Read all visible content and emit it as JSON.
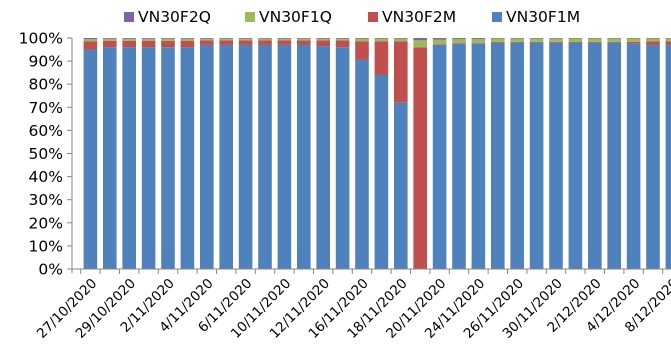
{
  "chart_data": {
    "type": "bar",
    "stacked": true,
    "percent_stacked": true,
    "title": "",
    "xlabel": "",
    "ylabel": "",
    "ylim": [
      0,
      100
    ],
    "yticks": [
      "0%",
      "10%",
      "20%",
      "30%",
      "40%",
      "50%",
      "60%",
      "70%",
      "80%",
      "90%",
      "100%"
    ],
    "legend_position": "top",
    "grid": false,
    "categories": [
      "27/10/2020",
      "28/10/2020",
      "29/10/2020",
      "30/10/2020",
      "2/11/2020",
      "3/11/2020",
      "4/11/2020",
      "5/11/2020",
      "6/11/2020",
      "9/11/2020",
      "10/11/2020",
      "11/11/2020",
      "12/11/2020",
      "13/11/2020",
      "16/11/2020",
      "17/11/2020",
      "18/11/2020",
      "19/11/2020",
      "20/11/2020",
      "23/11/2020",
      "24/11/2020",
      "25/11/2020",
      "26/11/2020",
      "27/11/2020",
      "30/11/2020",
      "1/12/2020",
      "2/12/2020",
      "3/12/2020",
      "4/12/2020",
      "7/12/2020",
      "8/12/2020"
    ],
    "x_tick_labels": [
      "27/10/2020",
      "29/10/2020",
      "2/11/2020",
      "4/11/2020",
      "6/11/2020",
      "10/11/2020",
      "12/11/2020",
      "16/11/2020",
      "18/11/2020",
      "20/11/2020",
      "24/11/2020",
      "26/11/2020",
      "30/11/2020",
      "2/12/2020",
      "4/12/2020",
      "8/12/2020"
    ],
    "series": [
      {
        "name": "VN30F1M",
        "color": "#4F81BD",
        "values": [
          95,
          96,
          96,
          96,
          96,
          96,
          97,
          97,
          97,
          97,
          97,
          97,
          96.5,
          96,
          90.5,
          84,
          72,
          0,
          97,
          97.5,
          97.5,
          98,
          98,
          98,
          98,
          98,
          98,
          98,
          97.5,
          97,
          97
        ]
      },
      {
        "name": "VN30F2M",
        "color": "#C0504D",
        "values": [
          3.5,
          2.8,
          2.8,
          2.8,
          2.8,
          2.8,
          2.0,
          2.0,
          2.0,
          2.0,
          2.0,
          2.0,
          2.5,
          3.0,
          8.0,
          14.5,
          26.5,
          96,
          0.3,
          0.3,
          0.3,
          0.3,
          0.3,
          0.3,
          0.3,
          0.3,
          0.3,
          0.3,
          0.8,
          1.5,
          1.5
        ]
      },
      {
        "name": "VN30F1Q",
        "color": "#9BBB59",
        "values": [
          1.0,
          0.9,
          0.9,
          0.9,
          0.9,
          0.9,
          0.7,
          0.7,
          0.7,
          0.7,
          0.7,
          0.7,
          0.7,
          0.7,
          1.2,
          1.2,
          1.2,
          3.0,
          2.0,
          1.8,
          1.8,
          1.5,
          1.5,
          1.5,
          1.5,
          1.5,
          1.5,
          1.5,
          1.5,
          1.3,
          1.3
        ]
      },
      {
        "name": "VN30F2Q",
        "color": "#8064A2",
        "values": [
          0.5,
          0.3,
          0.3,
          0.3,
          0.3,
          0.3,
          0.3,
          0.3,
          0.3,
          0.3,
          0.3,
          0.3,
          0.3,
          0.3,
          0.3,
          0.3,
          0.3,
          1.0,
          0.7,
          0.4,
          0.4,
          0.2,
          0.2,
          0.2,
          0.2,
          0.2,
          0.2,
          0.2,
          0.2,
          0.2,
          0.2
        ]
      }
    ],
    "legend_order": [
      "VN30F2Q",
      "VN30F1Q",
      "VN30F2M",
      "VN30F1M"
    ]
  }
}
